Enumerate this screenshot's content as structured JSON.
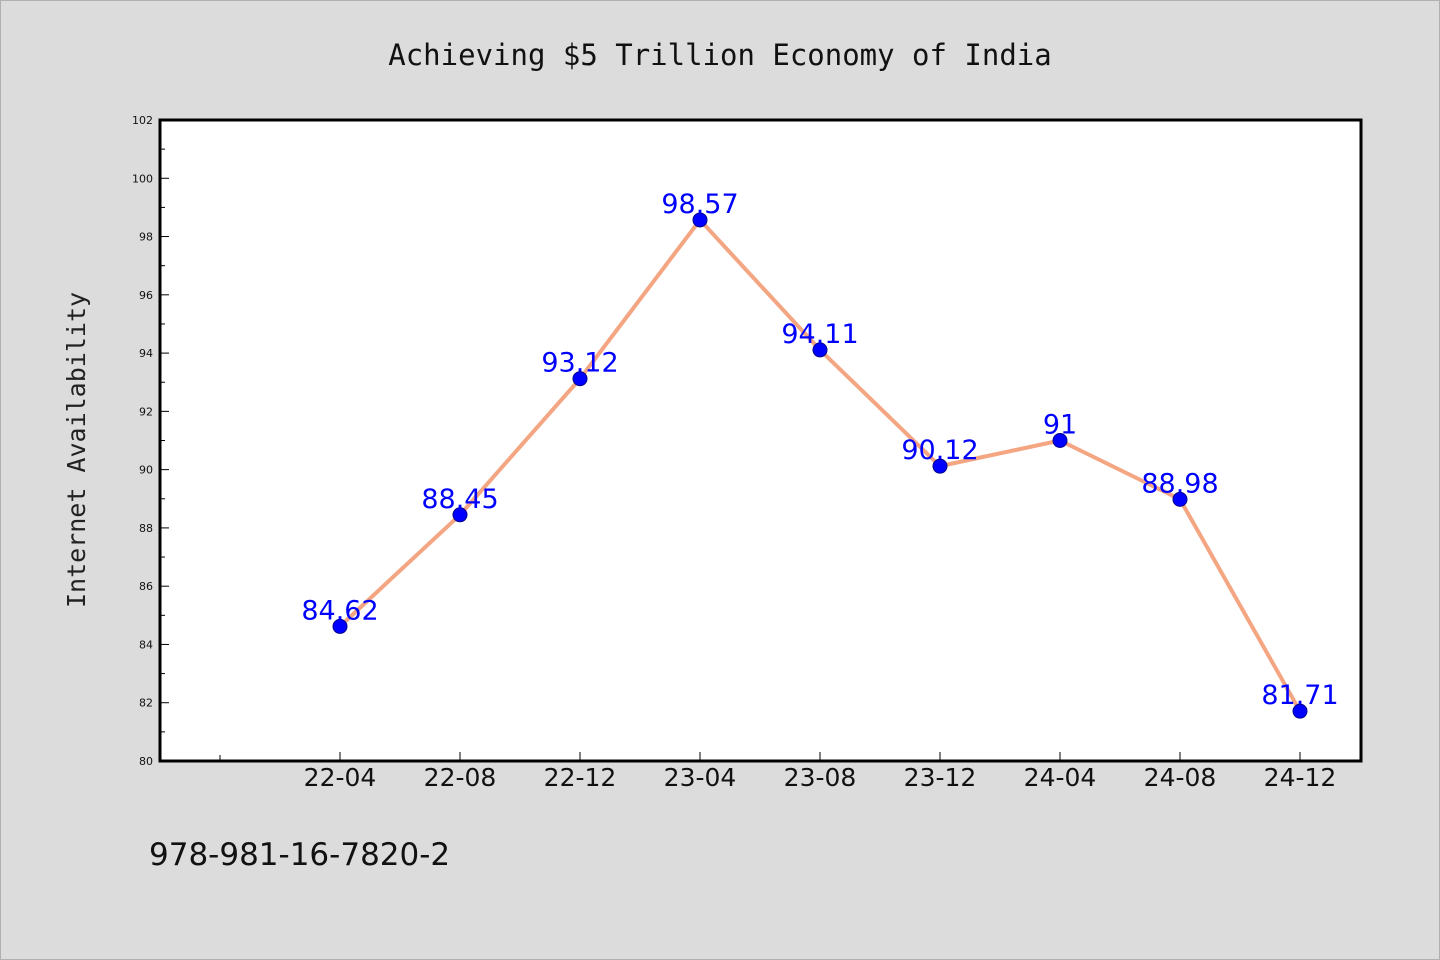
{
  "chart_data": {
    "type": "line",
    "title": "Achieving $5 Trillion Economy of India",
    "xlabel": "",
    "ylabel": "Internet Availability",
    "categories": [
      "22-04",
      "22-08",
      "22-12",
      "23-04",
      "23-08",
      "23-12",
      "24-04",
      "24-08",
      "24-12"
    ],
    "series": [
      {
        "values": [
          84.62,
          88.45,
          93.12,
          98.57,
          94.11,
          90.12,
          91,
          88.98,
          81.71
        ],
        "labels": [
          "84.62",
          "88.45",
          "93.12",
          "98.57",
          "94.11",
          "90.12",
          "91",
          "88.98",
          "81.71"
        ]
      }
    ],
    "ylim": [
      80,
      102
    ],
    "yticks": [
      80,
      82,
      84,
      86,
      88,
      90,
      92,
      94,
      96,
      98,
      100,
      102
    ],
    "grid": false,
    "legend": "none",
    "colors": {
      "line": "#f4a582",
      "marker": "#0000ff",
      "marker_edge": "#00008b",
      "data_label": "#0000ff",
      "background": "#dcdcdc",
      "plot_background": "#ffffff"
    }
  },
  "footer": {
    "code": "978-981-16-7820-2"
  }
}
